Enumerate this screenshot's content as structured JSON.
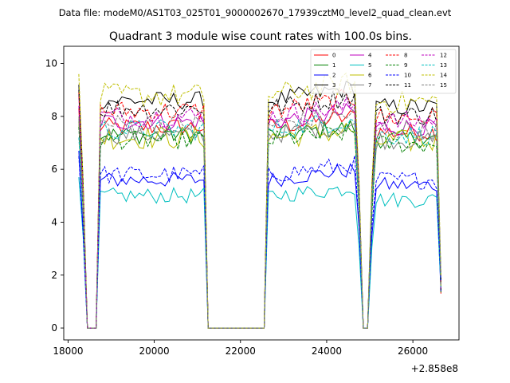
{
  "chart_data": {
    "type": "line",
    "suptitle": "Data file: modeM0/AS1T03_025T01_9000002670_17939cztM0_level2_quad_clean.evt",
    "title": "Quadrant 3 module wise count rates with 100.0s bins.",
    "xlabel": "",
    "ylabel": "",
    "x_offset_label": "+2.858e8",
    "xlim": [
      17900,
      27070
    ],
    "ylim": [
      -0.45,
      10.65
    ],
    "xticks": [
      18000,
      20000,
      22000,
      24000,
      26000
    ],
    "xtick_labels": [
      "18000",
      "20000",
      "22000",
      "24000",
      "26000"
    ],
    "yticks": [
      0,
      2,
      4,
      6,
      8,
      10
    ],
    "ytick_labels": [
      "0",
      "2",
      "4",
      "6",
      "8",
      "10"
    ],
    "grid": false,
    "legend_position": "top-right",
    "gaps": [
      [
        18400,
        18700
      ],
      [
        21200,
        22600
      ],
      [
        24800,
        25000
      ]
    ],
    "segment_edges": [
      [
        18300,
        18400
      ],
      [
        18700,
        18800
      ],
      [
        21200,
        21300
      ],
      [
        22600,
        22700
      ],
      [
        24700,
        24800
      ],
      [
        25000,
        25100
      ],
      [
        26600,
        26700
      ]
    ],
    "series": [
      {
        "name": "0",
        "color": "#ff0000",
        "dash": "solid",
        "level": 7.6,
        "ramp": 0.4,
        "jitter": 0.35,
        "start": 8.3,
        "end": 7.3
      },
      {
        "name": "1",
        "color": "#008000",
        "dash": "solid",
        "level": 7.3,
        "ramp": 0.3,
        "jitter": 0.35,
        "start": 7.8,
        "end": 6.9
      },
      {
        "name": "2",
        "color": "#0000ff",
        "dash": "solid",
        "level": 5.6,
        "ramp": 0.4,
        "jitter": 0.3,
        "start": 6.7,
        "end": 5.3
      },
      {
        "name": "3",
        "color": "#000000",
        "dash": "solid",
        "level": 8.6,
        "ramp": 0.5,
        "jitter": 0.35,
        "start": 9.2,
        "end": 8.4
      },
      {
        "name": "4",
        "color": "#bf00bf",
        "dash": "solid",
        "level": 7.8,
        "ramp": 0.4,
        "jitter": 0.35,
        "start": 8.8,
        "end": 7.6
      },
      {
        "name": "5",
        "color": "#00bfbf",
        "dash": "solid",
        "level": 5.0,
        "ramp": 0.3,
        "jitter": 0.3,
        "start": 5.7,
        "end": 4.7
      },
      {
        "name": "6",
        "color": "#bfbf00",
        "dash": "solid",
        "level": 7.2,
        "ramp": 0.3,
        "jitter": 0.45,
        "start": 7.8,
        "end": 6.9
      },
      {
        "name": "7",
        "color": "#808080",
        "dash": "solid",
        "level": 7.3,
        "ramp": 0.4,
        "jitter": 0.35,
        "start": 7.9,
        "end": 7.0
      },
      {
        "name": "8",
        "color": "#ff0000",
        "dash": "dashed",
        "level": 8.2,
        "ramp": 0.5,
        "jitter": 0.4,
        "start": 8.9,
        "end": 7.9
      },
      {
        "name": "9",
        "color": "#008000",
        "dash": "dashed",
        "level": 7.1,
        "ramp": 0.3,
        "jitter": 0.35,
        "start": 7.6,
        "end": 6.7
      },
      {
        "name": "10",
        "color": "#0000ff",
        "dash": "dashed",
        "level": 5.8,
        "ramp": 0.4,
        "jitter": 0.35,
        "start": 6.5,
        "end": 5.5
      },
      {
        "name": "11",
        "color": "#000000",
        "dash": "dashed",
        "level": 8.3,
        "ramp": 0.5,
        "jitter": 0.4,
        "start": 9.0,
        "end": 8.0
      },
      {
        "name": "12",
        "color": "#bf00bf",
        "dash": "dashed",
        "level": 8.0,
        "ramp": 0.4,
        "jitter": 0.4,
        "start": 8.4,
        "end": 7.7
      },
      {
        "name": "13",
        "color": "#00bfbf",
        "dash": "dashed",
        "level": 7.5,
        "ramp": 0.4,
        "jitter": 0.4,
        "start": 7.2,
        "end": 7.2
      },
      {
        "name": "14",
        "color": "#bfbf00",
        "dash": "dashed",
        "level": 8.8,
        "ramp": 0.5,
        "jitter": 0.45,
        "start": 9.6,
        "end": 8.4
      },
      {
        "name": "15",
        "color": "#808080",
        "dash": "dashed",
        "level": 7.7,
        "ramp": 0.4,
        "jitter": 0.4,
        "start": 8.0,
        "end": 7.4
      }
    ]
  }
}
